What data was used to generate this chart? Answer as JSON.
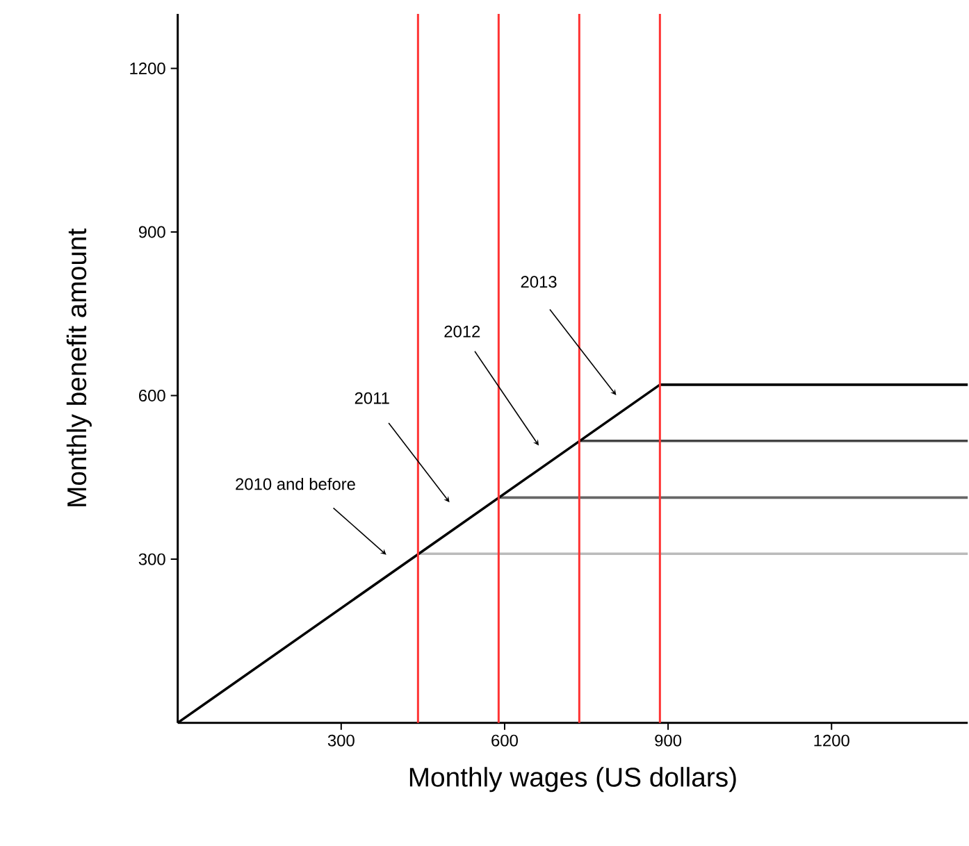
{
  "chart_data": {
    "type": "line",
    "xlabel": "Monthly wages (US dollars)",
    "ylabel": "Monthly benefit amount",
    "xlim": [
      0,
      1450
    ],
    "ylim": [
      0,
      1300
    ],
    "xticks": [
      300,
      600,
      900,
      1200
    ],
    "yticks": [
      300,
      600,
      900,
      1200
    ],
    "series": [
      {
        "color": "#bbbbbb",
        "x": [
          441,
          1450
        ],
        "values": [
          310,
          310
        ]
      },
      {
        "color": "#666666",
        "x": [
          589,
          1450
        ],
        "values": [
          413,
          413
        ]
      },
      {
        "color": "#444444",
        "x": [
          737,
          1450
        ],
        "values": [
          517,
          517
        ]
      },
      {
        "color": "#000000",
        "x": [
          0,
          885,
          1450
        ],
        "values": [
          0,
          620,
          620
        ]
      }
    ],
    "ref_lines": [
      {
        "axis": "x",
        "value": 441,
        "color": "#ff3333"
      },
      {
        "axis": "x",
        "value": 589,
        "color": "#ff3333"
      },
      {
        "axis": "x",
        "value": 737,
        "color": "#ff3333"
      },
      {
        "axis": "x",
        "value": 885,
        "color": "#ff3333"
      }
    ],
    "annotations": [
      "2010 and before",
      "2011",
      "2012",
      "2013"
    ]
  }
}
